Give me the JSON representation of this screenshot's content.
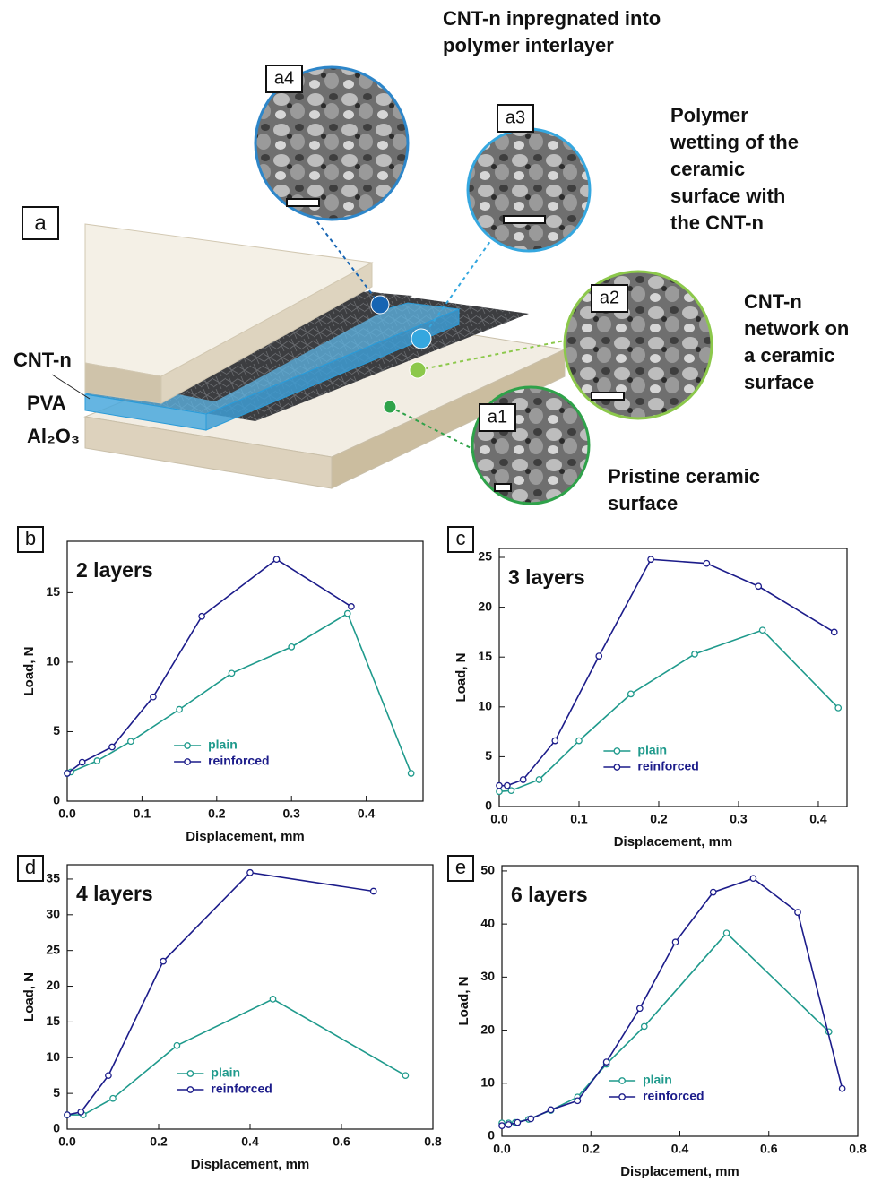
{
  "schematic": {
    "panel": "a",
    "layers": [
      "CNT-n",
      "PVA",
      "Al₂O₃"
    ],
    "insets": [
      {
        "label": "a4",
        "caption": [
          "CNT-n inpregnated into",
          "polymer interlayer"
        ]
      },
      {
        "label": "a3",
        "caption": [
          "Polymer",
          "wetting of the",
          "ceramic",
          "surface with",
          "the CNT-n"
        ]
      },
      {
        "label": "a2",
        "caption": [
          "CNT-n",
          "network on",
          "a ceramic",
          "surface"
        ]
      },
      {
        "label": "a1",
        "caption": [
          "Pristine ceramic",
          "surface"
        ]
      }
    ]
  },
  "chart_data": [
    {
      "type": "line",
      "panel": "b",
      "title": "2 layers",
      "x_label": "Displacement, mm",
      "y_label": "Load, N",
      "xlim": [
        0,
        0.476
      ],
      "ylim": [
        0,
        18.7
      ],
      "xticks": [
        {
          "value": 0,
          "label": "0.0"
        },
        0.1,
        0.2,
        0.3,
        0.4
      ],
      "yticks": [
        0,
        5,
        10,
        15
      ],
      "legend": "lower center",
      "series": [
        {
          "name": "plain",
          "color": "#1f9a8c",
          "x": [
            0,
            0.005,
            0.04,
            0.085,
            0.15,
            0.22,
            0.3,
            0.375,
            0.46
          ],
          "values": [
            2.0,
            2.1,
            2.9,
            4.3,
            6.6,
            9.2,
            11.1,
            13.5,
            2.0
          ]
        },
        {
          "name": "reinforced",
          "color": "#1c1c8a",
          "x": [
            0,
            0.02,
            0.06,
            0.115,
            0.18,
            0.28,
            0.38
          ],
          "values": [
            2.0,
            2.8,
            3.9,
            7.5,
            13.3,
            17.4,
            14.0
          ]
        }
      ]
    },
    {
      "type": "line",
      "panel": "c",
      "title": "3 layers",
      "x_label": "Displacement, mm",
      "y_label": "Load, N",
      "xlim": [
        0,
        0.436
      ],
      "ylim": [
        0,
        25.9
      ],
      "xticks": [
        {
          "value": 0,
          "label": "0.0"
        },
        0.1,
        0.2,
        0.3,
        0.4
      ],
      "yticks": [
        0,
        5,
        10,
        15,
        20,
        25
      ],
      "legend": "lower center",
      "series": [
        {
          "name": "plain",
          "color": "#1f9a8c",
          "x": [
            0,
            0.015,
            0.05,
            0.1,
            0.165,
            0.245,
            0.33,
            0.425
          ],
          "values": [
            1.5,
            1.6,
            2.7,
            6.6,
            11.3,
            15.3,
            17.7,
            9.9
          ]
        },
        {
          "name": "reinforced",
          "color": "#1c1c8a",
          "x": [
            0,
            0.01,
            0.03,
            0.07,
            0.125,
            0.19,
            0.26,
            0.325,
            0.42
          ],
          "values": [
            2.1,
            2.1,
            2.7,
            6.6,
            15.1,
            24.8,
            24.4,
            22.1,
            17.5
          ]
        }
      ]
    },
    {
      "type": "line",
      "panel": "d",
      "title": "4 layers",
      "x_label": "Displacement, mm",
      "y_label": "Load, N",
      "xlim": [
        0,
        0.8
      ],
      "ylim": [
        0,
        37
      ],
      "xticks": [
        {
          "value": 0,
          "label": "0.0"
        },
        0.2,
        0.4,
        0.6,
        0.8
      ],
      "yticks": [
        0,
        5,
        10,
        15,
        20,
        25,
        30,
        35
      ],
      "legend": "lower center",
      "series": [
        {
          "name": "plain",
          "color": "#1f9a8c",
          "x": [
            0,
            0.035,
            0.1,
            0.24,
            0.45,
            0.74
          ],
          "values": [
            2.0,
            2.0,
            4.3,
            11.7,
            18.2,
            7.5
          ]
        },
        {
          "name": "reinforced",
          "color": "#1c1c8a",
          "x": [
            0,
            0.03,
            0.09,
            0.21,
            0.4,
            0.67
          ],
          "values": [
            2.0,
            2.4,
            7.5,
            23.5,
            35.9,
            33.3
          ]
        }
      ]
    },
    {
      "type": "line",
      "panel": "e",
      "title": "6 layers",
      "x_label": "Displacement, mm",
      "y_label": "Load, N",
      "xlim": [
        0,
        0.8
      ],
      "ylim": [
        0,
        51
      ],
      "xticks": [
        {
          "value": 0,
          "label": "0.0"
        },
        0.2,
        0.4,
        0.6,
        0.8
      ],
      "yticks": [
        0,
        10,
        20,
        30,
        40,
        50
      ],
      "legend": "lower center",
      "series": [
        {
          "name": "plain",
          "color": "#1f9a8c",
          "x": [
            0,
            0.015,
            0.03,
            0.06,
            0.11,
            0.17,
            0.235,
            0.32,
            0.505,
            0.735
          ],
          "values": [
            2.5,
            2.5,
            2.6,
            3.2,
            4.9,
            7.4,
            13.6,
            20.7,
            38.3,
            19.7
          ]
        },
        {
          "name": "reinforced",
          "color": "#1c1c8a",
          "x": [
            0,
            0.015,
            0.035,
            0.065,
            0.11,
            0.17,
            0.235,
            0.31,
            0.39,
            0.475,
            0.565,
            0.665,
            0.765
          ],
          "values": [
            2.0,
            2.2,
            2.6,
            3.3,
            5.0,
            6.7,
            14.0,
            24.1,
            36.6,
            46.0,
            48.6,
            42.2,
            9.0
          ]
        }
      ]
    }
  ]
}
